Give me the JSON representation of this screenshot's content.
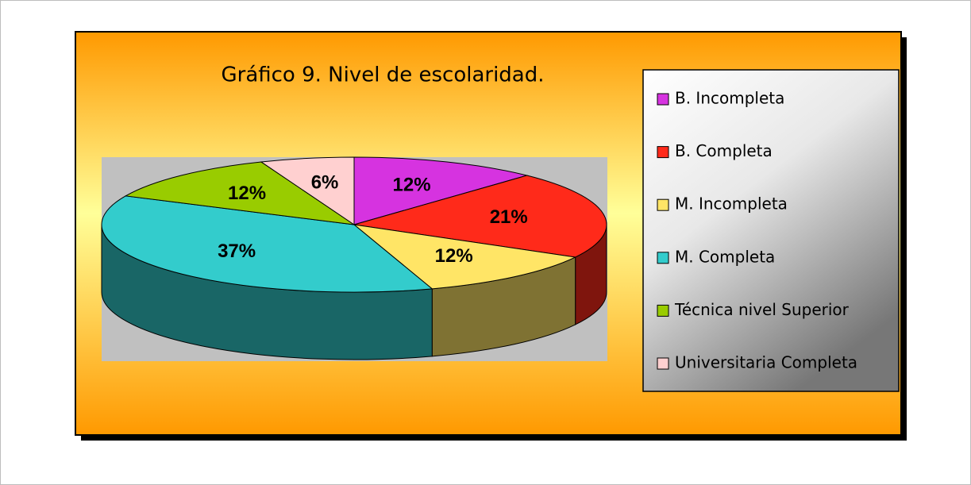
{
  "chart_data": {
    "type": "pie",
    "title": "Gráfico 9. Nivel de escolaridad.",
    "categories": [
      "B. Incompleta",
      "B. Completa",
      "M. Incompleta",
      "M. Completa",
      "Técnica nivel Superior",
      "Universitaria Completa"
    ],
    "values": [
      12,
      21,
      12,
      37,
      12,
      6
    ],
    "value_labels": [
      "12%",
      "21%",
      "12%",
      "37%",
      "12%",
      "6%"
    ],
    "colors": [
      "#d633e0",
      "#ff2a1a",
      "#ffe566",
      "#33cccc",
      "#99cc00",
      "#ffd0d0"
    ],
    "legend": "right"
  }
}
